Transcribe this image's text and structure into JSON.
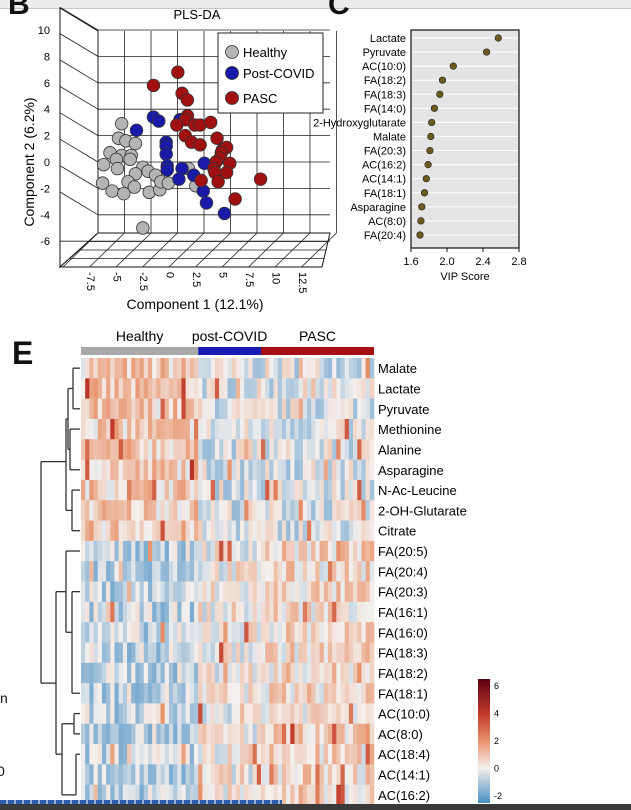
{
  "panels": {
    "b": "B",
    "c": "C",
    "e": "E"
  },
  "chart_data": [
    {
      "type": "scatter",
      "title": "PLS-DA",
      "xlabel": "Component 1 (12.1%)",
      "ylabel": "Component 2 (6.2%)",
      "xticks": [
        "-7.5",
        "-5",
        "-2.5",
        "0",
        "2.5",
        "5",
        "7.5",
        "10",
        "12.5"
      ],
      "yticks": [
        "10",
        "8",
        "6",
        "4",
        "2",
        "0",
        "-2",
        "-4",
        "-6"
      ],
      "xlim": [
        -7.5,
        12.5
      ],
      "ylim": [
        -6,
        10
      ],
      "grid": true,
      "legend": "top-right",
      "series": [
        {
          "name": "Healthy",
          "color": "#b4b4b4",
          "points": [
            [
              -3.9,
              2.9
            ],
            [
              -4.2,
              1.8
            ],
            [
              -3.5,
              1.6
            ],
            [
              -2.6,
              1.4
            ],
            [
              -5.0,
              0.7
            ],
            [
              -3.9,
              0.5
            ],
            [
              -3.0,
              0.5
            ],
            [
              -4.4,
              0.2
            ],
            [
              -3.1,
              0.2
            ],
            [
              -5.6,
              -0.2
            ],
            [
              -4.3,
              -0.5
            ],
            [
              -1.9,
              -0.4
            ],
            [
              -2.6,
              -0.9
            ],
            [
              -1.4,
              -0.7
            ],
            [
              -0.7,
              -1.0
            ],
            [
              -3.3,
              -1.5
            ],
            [
              -2.7,
              -1.9
            ],
            [
              -5.7,
              -1.6
            ],
            [
              -4.8,
              -2.2
            ],
            [
              -3.7,
              -2.4
            ],
            [
              -1.3,
              -2.3
            ],
            [
              -0.3,
              -2.1
            ],
            [
              -0.2,
              -1.5
            ],
            [
              0.5,
              -1.6
            ],
            [
              2.4,
              -0.5
            ],
            [
              3.1,
              -1.8
            ],
            [
              -1.9,
              -5.0
            ]
          ]
        },
        {
          "name": "Post-COVID",
          "color": "#1a1aa8",
          "points": [
            [
              -2.5,
              2.4
            ],
            [
              -0.9,
              3.4
            ],
            [
              -0.4,
              3.1
            ],
            [
              1.6,
              3.2
            ],
            [
              0.3,
              1.5
            ],
            [
              0.3,
              1.2
            ],
            [
              0.3,
              0.6
            ],
            [
              0.4,
              -0.3
            ],
            [
              0.4,
              -0.6
            ],
            [
              1.8,
              -0.5
            ],
            [
              1.5,
              -1.3
            ],
            [
              2.9,
              -1.0
            ],
            [
              3.9,
              -0.1
            ],
            [
              3.8,
              -2.2
            ],
            [
              4.1,
              -3.1
            ],
            [
              5.8,
              -3.9
            ]
          ]
        },
        {
          "name": "PASC",
          "color": "#a01010",
          "points": [
            [
              1.4,
              6.8
            ],
            [
              -0.9,
              5.8
            ],
            [
              1.8,
              5.2
            ],
            [
              2.3,
              4.7
            ],
            [
              2.3,
              3.5
            ],
            [
              2.1,
              3.2
            ],
            [
              1.3,
              2.8
            ],
            [
              3.0,
              2.8
            ],
            [
              3.5,
              2.8
            ],
            [
              4.5,
              3.0
            ],
            [
              2.1,
              2.0
            ],
            [
              2.7,
              1.5
            ],
            [
              3.5,
              1.3
            ],
            [
              5.1,
              1.8
            ],
            [
              5.6,
              0.9
            ],
            [
              6.0,
              1.1
            ],
            [
              5.5,
              0.7
            ],
            [
              5.4,
              0.3
            ],
            [
              5.0,
              0.0
            ],
            [
              6.3,
              -0.1
            ],
            [
              4.8,
              -0.5
            ],
            [
              6.0,
              -0.8
            ],
            [
              4.9,
              -0.8
            ],
            [
              3.6,
              -1.4
            ],
            [
              5.2,
              -1.5
            ],
            [
              9.2,
              -1.3
            ],
            [
              6.8,
              -2.8
            ]
          ]
        }
      ]
    },
    {
      "type": "scatter",
      "xlabel": "VIP Score",
      "xlim": [
        1.6,
        2.8
      ],
      "xticks": [
        "1.6",
        "2.0",
        "2.4",
        "2.8"
      ],
      "color": "#6b5b1f",
      "categories": [
        "Lactate",
        "Pyruvate",
        "AC(10:0)",
        "FA(18:2)",
        "FA(18:3)",
        "FA(14:0)",
        "2-Hydroxyglutarate",
        "Malate",
        "FA(20:3)",
        "AC(16:2)",
        "AC(14:1)",
        "FA(18:1)",
        "Asparagine",
        "AC(8:0)",
        "FA(20:4)"
      ],
      "values": [
        2.57,
        2.44,
        2.07,
        1.95,
        1.92,
        1.86,
        1.83,
        1.82,
        1.81,
        1.79,
        1.77,
        1.75,
        1.72,
        1.71,
        1.7
      ]
    },
    {
      "type": "heatmap",
      "groups": [
        {
          "name": "Healthy",
          "color": "#a9a9a9",
          "samples": 28
        },
        {
          "name": "post-COVID",
          "color": "#1a1ab4",
          "samples": 15
        },
        {
          "name": "PASC",
          "color": "#a50f15",
          "samples": 27
        }
      ],
      "rows": [
        "Malate",
        "Lactate",
        "Pyruvate",
        "Methionine",
        "Alanine",
        "Asparagine",
        "N-Ac-Leucine",
        "2-OH-Glutarate",
        "Citrate",
        "FA(20:5)",
        "FA(20:4)",
        "FA(20:3)",
        "FA(16:1)",
        "FA(16:0)",
        "FA(18:3)",
        "FA(18:2)",
        "FA(18:1)",
        "AC(10:0)",
        "AC(8:0)",
        "AC(18:4)",
        "AC(14:1)",
        "AC(16:2)"
      ],
      "colorbar": {
        "ticks": [
          "6",
          "4",
          "2",
          "0",
          "-2"
        ],
        "range": [
          -2.5,
          6.5
        ],
        "colors": [
          "#4a8fc4",
          "#f4f0ee",
          "#e8936b",
          "#c0392b",
          "#5e0010"
        ]
      }
    }
  ],
  "edge_fragments": {
    "left_a": "n",
    "left_b": "0"
  }
}
